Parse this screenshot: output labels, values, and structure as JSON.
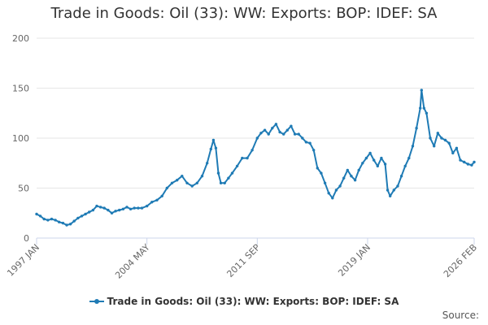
{
  "chart_data": {
    "type": "line",
    "title": "Trade in Goods: Oil (33): WW: Exports: BOP: IDEF: SA",
    "xlabel": "",
    "ylabel": "",
    "x_range": [
      "1997-01",
      "2026-02"
    ],
    "x_tick_labels": [
      "1997 JAN",
      "2004 MAY",
      "2011 SEP",
      "2019 JAN",
      "2026 FEB"
    ],
    "x_tick_dates": [
      "1997-01",
      "2004-05",
      "2011-09",
      "2019-01",
      "2026-02"
    ],
    "ylim": [
      0,
      200
    ],
    "y_ticks": [
      0,
      50,
      100,
      150,
      200
    ],
    "grid": "horizontal",
    "legend_position": "bottom",
    "series": [
      {
        "name": "Trade in Goods: Oil (33): WW: Exports: BOP: IDEF: SA",
        "color": "#1f7bb5",
        "points": [
          [
            "1997-01",
            24
          ],
          [
            "1997-04",
            22
          ],
          [
            "1997-07",
            19
          ],
          [
            "1997-10",
            18
          ],
          [
            "1998-01",
            19
          ],
          [
            "1998-04",
            18
          ],
          [
            "1998-07",
            16
          ],
          [
            "1998-10",
            15
          ],
          [
            "1999-01",
            13
          ],
          [
            "1999-04",
            14
          ],
          [
            "1999-07",
            17
          ],
          [
            "1999-10",
            20
          ],
          [
            "2000-01",
            22
          ],
          [
            "2000-04",
            24
          ],
          [
            "2000-07",
            26
          ],
          [
            "2000-10",
            28
          ],
          [
            "2001-01",
            32
          ],
          [
            "2001-04",
            31
          ],
          [
            "2001-07",
            30
          ],
          [
            "2001-10",
            28
          ],
          [
            "2002-01",
            25
          ],
          [
            "2002-04",
            27
          ],
          [
            "2002-07",
            28
          ],
          [
            "2002-10",
            29
          ],
          [
            "2003-01",
            31
          ],
          [
            "2003-04",
            29
          ],
          [
            "2003-07",
            30
          ],
          [
            "2003-10",
            30
          ],
          [
            "2004-01",
            30
          ],
          [
            "2004-05",
            32
          ],
          [
            "2004-09",
            36
          ],
          [
            "2005-01",
            38
          ],
          [
            "2005-05",
            42
          ],
          [
            "2005-09",
            50
          ],
          [
            "2006-01",
            55
          ],
          [
            "2006-05",
            58
          ],
          [
            "2006-09",
            62
          ],
          [
            "2007-01",
            55
          ],
          [
            "2007-05",
            52
          ],
          [
            "2007-09",
            55
          ],
          [
            "2008-01",
            62
          ],
          [
            "2008-05",
            75
          ],
          [
            "2008-08",
            89
          ],
          [
            "2008-10",
            98
          ],
          [
            "2008-12",
            90
          ],
          [
            "2009-02",
            65
          ],
          [
            "2009-04",
            55
          ],
          [
            "2009-07",
            55
          ],
          [
            "2009-10",
            60
          ],
          [
            "2010-01",
            65
          ],
          [
            "2010-05",
            72
          ],
          [
            "2010-09",
            80
          ],
          [
            "2011-01",
            80
          ],
          [
            "2011-05",
            88
          ],
          [
            "2011-09",
            100
          ],
          [
            "2011-12",
            105
          ],
          [
            "2012-03",
            108
          ],
          [
            "2012-06",
            104
          ],
          [
            "2012-09",
            110
          ],
          [
            "2012-12",
            114
          ],
          [
            "2013-03",
            106
          ],
          [
            "2013-06",
            104
          ],
          [
            "2013-09",
            108
          ],
          [
            "2013-12",
            112
          ],
          [
            "2014-03",
            104
          ],
          [
            "2014-06",
            104
          ],
          [
            "2014-09",
            100
          ],
          [
            "2014-12",
            96
          ],
          [
            "2015-03",
            95
          ],
          [
            "2015-06",
            88
          ],
          [
            "2015-09",
            70
          ],
          [
            "2015-12",
            65
          ],
          [
            "2016-03",
            55
          ],
          [
            "2016-06",
            45
          ],
          [
            "2016-09",
            40
          ],
          [
            "2016-12",
            48
          ],
          [
            "2017-03",
            52
          ],
          [
            "2017-06",
            60
          ],
          [
            "2017-09",
            68
          ],
          [
            "2017-12",
            62
          ],
          [
            "2018-03",
            58
          ],
          [
            "2018-06",
            68
          ],
          [
            "2018-09",
            75
          ],
          [
            "2018-12",
            80
          ],
          [
            "2019-03",
            85
          ],
          [
            "2019-06",
            78
          ],
          [
            "2019-09",
            72
          ],
          [
            "2019-12",
            80
          ],
          [
            "2020-03",
            74
          ],
          [
            "2020-05",
            48
          ],
          [
            "2020-07",
            42
          ],
          [
            "2020-10",
            48
          ],
          [
            "2021-01",
            52
          ],
          [
            "2021-04",
            62
          ],
          [
            "2021-07",
            72
          ],
          [
            "2021-10",
            80
          ],
          [
            "2022-01",
            92
          ],
          [
            "2022-04",
            110
          ],
          [
            "2022-07",
            130
          ],
          [
            "2022-08",
            148
          ],
          [
            "2022-10",
            130
          ],
          [
            "2022-12",
            125
          ],
          [
            "2023-03",
            100
          ],
          [
            "2023-06",
            92
          ],
          [
            "2023-09",
            105
          ],
          [
            "2023-12",
            100
          ],
          [
            "2024-03",
            98
          ],
          [
            "2024-06",
            95
          ],
          [
            "2024-09",
            85
          ],
          [
            "2024-12",
            90
          ],
          [
            "2025-03",
            78
          ],
          [
            "2025-06",
            76
          ],
          [
            "2025-09",
            74
          ],
          [
            "2025-12",
            73
          ],
          [
            "2026-02",
            76
          ]
        ]
      }
    ]
  },
  "footer": {
    "source_label": "Source:"
  }
}
